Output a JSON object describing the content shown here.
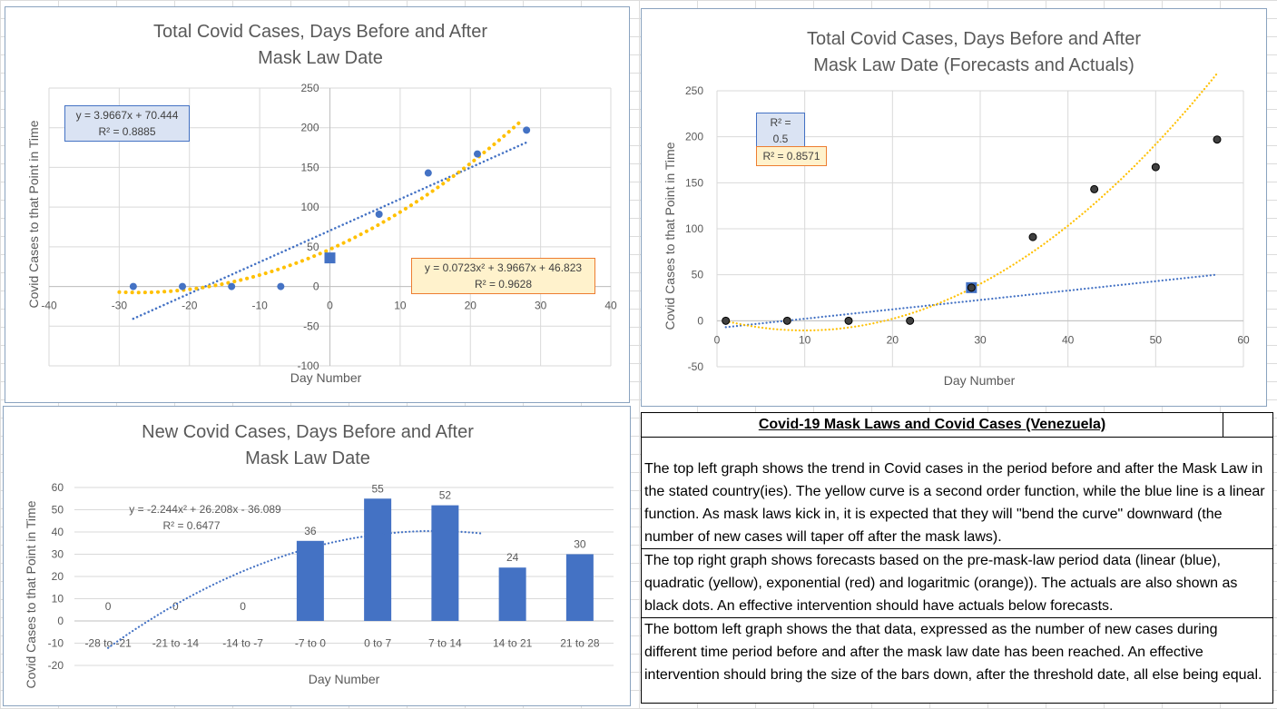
{
  "colors": {
    "blue": "#4472c4",
    "yellow": "#ffc000",
    "black_dot": "#404040",
    "grid": "#d9d9d9",
    "axis_text": "#595959"
  },
  "chart_data": [
    {
      "id": "total-cases",
      "type": "scatter",
      "title_lines": [
        "Total Covid Cases, Days Before and After",
        "Mask Law Date"
      ],
      "xlabel": "Day Number",
      "ylabel": "Covid Cases to that Point in Time",
      "xlim": [
        -40,
        40
      ],
      "ylim": [
        -100,
        250
      ],
      "xticks": [
        "-40",
        "-30",
        "-20",
        "-10",
        "0",
        "10",
        "20",
        "30",
        "40"
      ],
      "yticks": [
        "-100",
        "-50",
        "0",
        "50",
        "100",
        "150",
        "200",
        "250"
      ],
      "points": [
        {
          "x": -28,
          "y": 0
        },
        {
          "x": -21,
          "y": 0
        },
        {
          "x": -14,
          "y": 0
        },
        {
          "x": -7,
          "y": 0
        },
        {
          "x": 7,
          "y": 91
        },
        {
          "x": 14,
          "y": 143
        },
        {
          "x": 21,
          "y": 167
        },
        {
          "x": 28,
          "y": 197
        }
      ],
      "highlight_point": {
        "x": 0,
        "y": 36
      },
      "trendlines": [
        {
          "name": "linear",
          "equation": "y = 3.9667x + 70.444",
          "r2": "R² = 0.8885",
          "color": "#4472c4",
          "a": 0,
          "b": 3.9667,
          "c": 70.444,
          "x_range": [
            -28,
            28
          ]
        },
        {
          "name": "polynomial",
          "equation": "y = 0.0723x² + 3.9667x + 46.823",
          "r2": "R² = 0.9628",
          "color": "#ffc000",
          "a": 0.0723,
          "b": 3.9667,
          "c": 46.823,
          "x_range": [
            -30,
            27
          ]
        }
      ]
    },
    {
      "id": "forecast-actual",
      "type": "scatter",
      "title_lines": [
        "Total Covid Cases, Days Before and After",
        "Mask Law Date (Forecasts and Actuals)"
      ],
      "xlabel": "Day Number",
      "ylabel": "Covid Cases to that Point in Time",
      "xlim": [
        0,
        60
      ],
      "ylim": [
        -50,
        250
      ],
      "xticks": [
        "0",
        "10",
        "20",
        "30",
        "40",
        "50",
        "60"
      ],
      "yticks": [
        "-50",
        "0",
        "50",
        "100",
        "150",
        "200",
        "250"
      ],
      "points": [
        {
          "x": 1,
          "y": 0
        },
        {
          "x": 8,
          "y": 0
        },
        {
          "x": 15,
          "y": 0
        },
        {
          "x": 22,
          "y": 0
        },
        {
          "x": 29,
          "y": 36
        },
        {
          "x": 36,
          "y": 91
        },
        {
          "x": 43,
          "y": 143
        },
        {
          "x": 50,
          "y": 167
        },
        {
          "x": 57,
          "y": 197
        }
      ],
      "highlight_point": {
        "x": 29,
        "y": 36
      },
      "trendlines": [
        {
          "name": "linear",
          "r2": "R² = 0.5",
          "color": "#4472c4",
          "a": 0,
          "b": 1.02,
          "c": -8,
          "x_range": [
            1,
            57
          ]
        },
        {
          "name": "polynomial",
          "r2": "R² = 0.8571",
          "color": "#ffc000",
          "a": 0.1265,
          "b": -2.53,
          "c": 2.1,
          "x_range": [
            1,
            57
          ]
        }
      ]
    },
    {
      "id": "new-cases",
      "type": "bar",
      "title_lines": [
        "New Covid Cases, Days Before and After",
        "Mask Law Date"
      ],
      "xlabel": "Day Number",
      "ylabel": "Covid Cases to that Point in Time",
      "ylim": [
        -20,
        60
      ],
      "yticks": [
        "-20",
        "-10",
        "0",
        "10",
        "20",
        "30",
        "40",
        "50",
        "60"
      ],
      "categories": [
        "-28 to -21",
        "-21 to -14",
        "-14 to -7",
        "-7 to 0",
        "0 to 7",
        "7 to 14",
        "14 to 21",
        "21 to 28"
      ],
      "values": [
        0,
        0,
        0,
        36,
        55,
        52,
        24,
        30
      ],
      "value_labels": [
        "0",
        "0",
        "0",
        "36",
        "55",
        "52",
        "24",
        "30"
      ],
      "trendline": {
        "equation": "y = -2.244x² + 26.208x - 36.089",
        "r2": "R² = 0.6477",
        "color": "#4472c4",
        "a": -2.244,
        "b": 26.208,
        "c": -36.089
      }
    }
  ],
  "text_panel": {
    "title": "Covid-19 Mask Laws and Covid Cases (Venezuela)",
    "paragraphs": [
      "The top left graph shows the trend in Covid cases in the period before and after the Mask Law in the stated country(ies).  The yellow curve is a second order function, while the blue line is a linear function.  As mask laws kick in, it is expected that they will \"bend the curve\" downward (the number of new cases will taper off after the mask laws).",
      "The top right graph shows forecasts based on the pre-mask-law period data (linear (blue), quadratic (yellow), exponential (red) and logaritmic (orange)).  The actuals are also shown as black dots.  An effective intervention should have actuals below forecasts.",
      "The bottom left graph shows the that data, expressed as the number of new cases during different time period before and after the mask law date has been reached.  An effective intervention should bring the size of the bars down, after the threshold date, all else being equal."
    ]
  }
}
